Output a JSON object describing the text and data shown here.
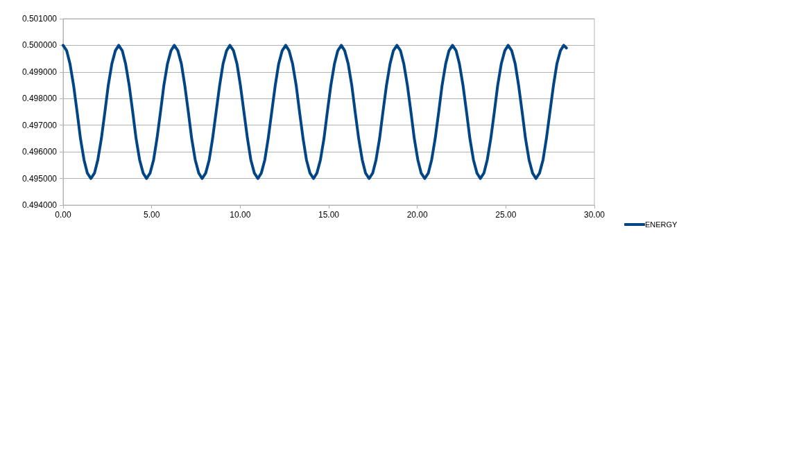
{
  "chart_data": {
    "type": "line",
    "x": [
      0.0,
      0.2,
      0.39,
      0.59,
      0.79,
      0.98,
      1.18,
      1.37,
      1.57,
      1.77,
      1.96,
      2.16,
      2.36,
      2.55,
      2.75,
      2.95,
      3.14,
      3.34,
      3.53,
      3.73,
      3.93,
      4.12,
      4.32,
      4.52,
      4.71,
      4.91,
      5.11,
      5.3,
      5.5,
      5.69,
      5.89,
      6.09,
      6.28,
      6.48,
      6.68,
      6.87,
      7.07,
      7.26,
      7.46,
      7.66,
      7.85,
      8.05,
      8.25,
      8.44,
      8.64,
      8.84,
      9.03,
      9.23,
      9.42,
      9.62,
      9.82,
      10.01,
      10.21,
      10.41,
      10.6,
      10.8,
      11.0,
      11.19,
      11.39,
      11.58,
      11.78,
      11.98,
      12.17,
      12.37,
      12.57,
      12.76,
      12.96,
      13.16,
      13.35,
      13.55,
      13.74,
      13.94,
      14.14,
      14.33,
      14.53,
      14.73,
      14.92,
      15.12,
      15.32,
      15.51,
      15.71,
      15.9,
      16.1,
      16.3,
      16.49,
      16.69,
      16.89,
      17.08,
      17.28,
      17.48,
      17.67,
      17.87,
      18.06,
      18.26,
      18.46,
      18.65,
      18.85,
      19.05,
      19.24,
      19.44,
      19.64,
      19.83,
      20.03,
      20.22,
      20.42,
      20.62,
      20.81,
      21.01,
      21.21,
      21.4,
      21.6,
      21.79,
      21.99,
      22.19,
      22.38,
      22.58,
      22.78,
      22.97,
      23.17,
      23.37,
      23.56,
      23.76,
      23.95,
      24.15,
      24.35,
      24.54,
      24.74,
      24.94,
      25.13,
      25.33,
      25.53,
      25.72,
      25.92,
      26.11,
      26.31,
      26.51,
      26.7,
      26.9,
      27.1,
      27.29,
      27.49,
      27.69,
      27.88,
      28.08,
      28.27,
      28.42
    ],
    "series": [
      {
        "name": "ENERGY",
        "color": "#004586",
        "values": [
          0.5,
          0.4998,
          0.4993,
          0.4985,
          0.4975,
          0.4965,
          0.4957,
          0.4952,
          0.495,
          0.4952,
          0.4957,
          0.4965,
          0.4975,
          0.4985,
          0.4993,
          0.4998,
          0.5,
          0.4998,
          0.4993,
          0.4985,
          0.4975,
          0.4965,
          0.4957,
          0.4952,
          0.495,
          0.4952,
          0.4957,
          0.4965,
          0.4975,
          0.4985,
          0.4993,
          0.4998,
          0.5,
          0.4998,
          0.4993,
          0.4985,
          0.4975,
          0.4965,
          0.4957,
          0.4952,
          0.495,
          0.4952,
          0.4957,
          0.4965,
          0.4975,
          0.4985,
          0.4993,
          0.4998,
          0.5,
          0.4998,
          0.4993,
          0.4985,
          0.4975,
          0.4965,
          0.4957,
          0.4952,
          0.495,
          0.4952,
          0.4957,
          0.4965,
          0.4975,
          0.4985,
          0.4993,
          0.4998,
          0.5,
          0.4998,
          0.4993,
          0.4985,
          0.4975,
          0.4965,
          0.4957,
          0.4952,
          0.495,
          0.4952,
          0.4957,
          0.4965,
          0.4975,
          0.4985,
          0.4993,
          0.4998,
          0.5,
          0.4998,
          0.4993,
          0.4985,
          0.4975,
          0.4965,
          0.4957,
          0.4952,
          0.495,
          0.4952,
          0.4957,
          0.4965,
          0.4975,
          0.4985,
          0.4993,
          0.4998,
          0.5,
          0.4998,
          0.4993,
          0.4985,
          0.4975,
          0.4965,
          0.4957,
          0.4952,
          0.495,
          0.4952,
          0.4957,
          0.4965,
          0.4975,
          0.4985,
          0.4993,
          0.4998,
          0.5,
          0.4998,
          0.4993,
          0.4985,
          0.4975,
          0.4965,
          0.4957,
          0.4952,
          0.495,
          0.4952,
          0.4957,
          0.4965,
          0.4975,
          0.4985,
          0.4993,
          0.4998,
          0.5,
          0.4998,
          0.4993,
          0.4985,
          0.4975,
          0.4965,
          0.4957,
          0.4952,
          0.495,
          0.4952,
          0.4957,
          0.4965,
          0.4975,
          0.4985,
          0.4993,
          0.4998,
          0.5,
          0.4999
        ]
      }
    ],
    "xlim": [
      0,
      30
    ],
    "xticks": [
      {
        "value": 0,
        "label": "0.00"
      },
      {
        "value": 5,
        "label": "5.00"
      },
      {
        "value": 10,
        "label": "10.00"
      },
      {
        "value": 15,
        "label": "15.00"
      },
      {
        "value": 20,
        "label": "20.00"
      },
      {
        "value": 25,
        "label": "25.00"
      },
      {
        "value": 30,
        "label": "30.00"
      }
    ],
    "ylim": [
      0.494,
      0.501
    ],
    "yticks": [
      {
        "value": 0.494,
        "label": "0.494000"
      },
      {
        "value": 0.495,
        "label": "0.495000"
      },
      {
        "value": 0.496,
        "label": "0.496000"
      },
      {
        "value": 0.497,
        "label": "0.497000"
      },
      {
        "value": 0.498,
        "label": "0.498000"
      },
      {
        "value": 0.499,
        "label": "0.499000"
      },
      {
        "value": 0.5,
        "label": "0.500000"
      },
      {
        "value": 0.501,
        "label": "0.501000"
      }
    ],
    "grid": "y",
    "legend": "right",
    "marker": "none",
    "line_style": "solid"
  }
}
